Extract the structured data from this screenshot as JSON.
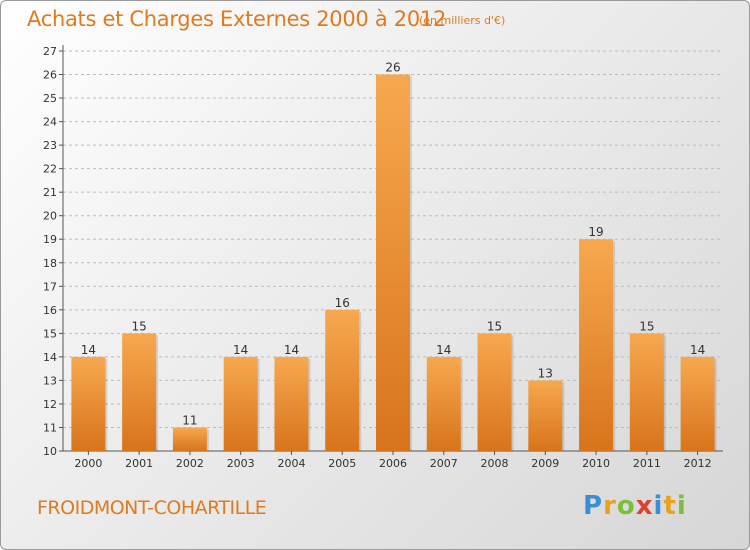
{
  "header": {
    "title": "Achats et Charges Externes 2000 à 2012",
    "unit": "(en milliers d'€)"
  },
  "footer": {
    "commune": "FROIDMONT-COHARTILLE",
    "brand": "Proxiti",
    "brand_letters": [
      {
        "ch": "P",
        "color": "#3a8fd4"
      },
      {
        "ch": "r",
        "color": "#e8a31e"
      },
      {
        "ch": "o",
        "color": "#7cbf3a"
      },
      {
        "ch": "x",
        "color": "#e0402e"
      },
      {
        "ch": "i",
        "color": "#3a8fd4"
      },
      {
        "ch": "t",
        "color": "#e8a31e"
      },
      {
        "ch": "i",
        "color": "#7cbf3a"
      }
    ]
  },
  "colors": {
    "accent": "#e07a1e",
    "bar_top": "#f7a84f",
    "bar_bottom": "#d8741b",
    "grid": "#bcbcbc",
    "axis_text": "#333333"
  },
  "chart_data": {
    "type": "bar",
    "categories": [
      "2000",
      "2001",
      "2002",
      "2003",
      "2004",
      "2005",
      "2006",
      "2007",
      "2008",
      "2009",
      "2010",
      "2011",
      "2012"
    ],
    "values": [
      14,
      15,
      11,
      14,
      14,
      16,
      26,
      14,
      15,
      13,
      19,
      15,
      14
    ],
    "ylim": [
      10,
      27
    ],
    "yticks": [
      10,
      11,
      12,
      13,
      14,
      15,
      16,
      17,
      18,
      19,
      20,
      21,
      22,
      23,
      24,
      25,
      26,
      27
    ],
    "grid": "horizontal dashed",
    "data_labels": true
  }
}
